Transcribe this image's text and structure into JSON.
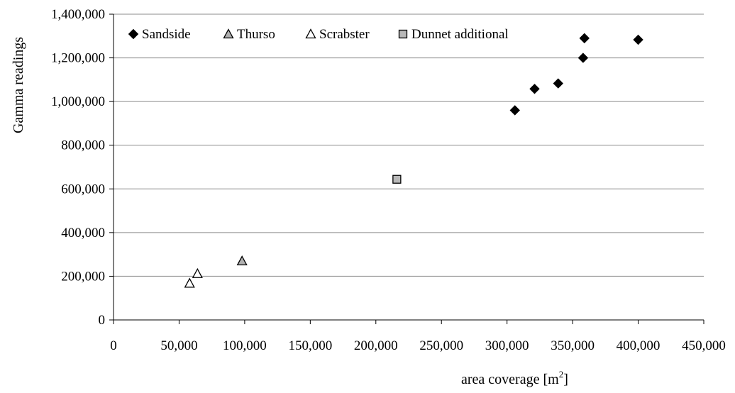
{
  "chart_data": {
    "type": "scatter",
    "title": "",
    "xlabel": "area coverage [m",
    "xlabel_sup": "2",
    "xlabel_tail": "]",
    "ylabel": "Gamma readings",
    "xlim": [
      0,
      450000
    ],
    "ylim": [
      0,
      1400000
    ],
    "x_ticks": [
      0,
      50000,
      100000,
      150000,
      200000,
      250000,
      300000,
      350000,
      400000,
      450000
    ],
    "x_tick_labels": [
      "0",
      "50,000",
      "100,000",
      "150,000",
      "200,000",
      "250,000",
      "300,000",
      "350,000",
      "400,000",
      "450,000"
    ],
    "y_ticks": [
      0,
      200000,
      400000,
      600000,
      800000,
      1000000,
      1200000,
      1400000
    ],
    "y_tick_labels": [
      "0",
      "200,000",
      "400,000",
      "600,000",
      "800,000",
      "1,000,000",
      "1,200,000",
      "1,400,000"
    ],
    "grid": "horizontal",
    "legend_position": "top",
    "series": [
      {
        "name": "Sandside",
        "marker": "diamond",
        "color": "#000000",
        "points": [
          [
            306000,
            960000
          ],
          [
            321000,
            1058000
          ],
          [
            339000,
            1083000
          ],
          [
            358000,
            1200000
          ],
          [
            359000,
            1290000
          ],
          [
            400000,
            1283000
          ]
        ]
      },
      {
        "name": "Thurso",
        "marker": "triangle",
        "color": "#b0b0b0",
        "points": [
          [
            98000,
            270000
          ]
        ]
      },
      {
        "name": "Scrabster",
        "marker": "triangle-open",
        "color": "#ffffff",
        "points": [
          [
            58000,
            168000
          ],
          [
            64000,
            212000
          ]
        ]
      },
      {
        "name": "Dunnet additional",
        "marker": "square",
        "color": "#b8b8b8",
        "points": [
          [
            216000,
            644000
          ]
        ]
      }
    ]
  }
}
